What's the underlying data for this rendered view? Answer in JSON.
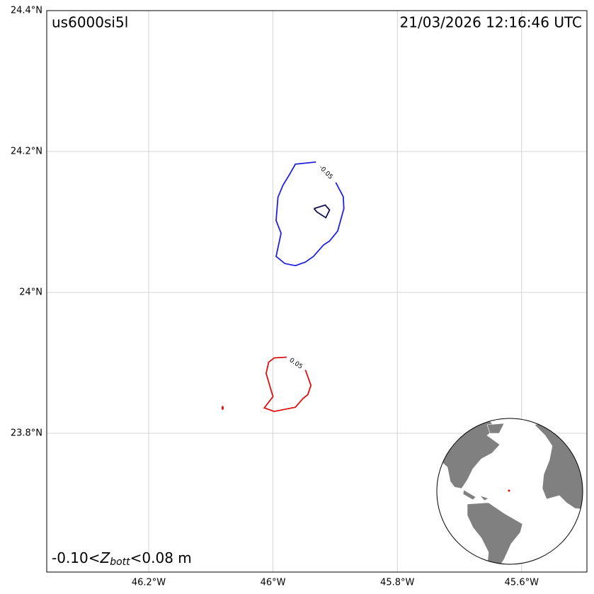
{
  "chart_data": {
    "type": "contour-map",
    "title": "us6000si5l",
    "timestamp": "21/03/2026 12:16:46 UTC",
    "range_label": {
      "prefix": "-0.10<",
      "symbol": "Z",
      "subscript": "bott",
      "suffix": "<0.08 m"
    },
    "xlim": [
      -46.364,
      -45.495
    ],
    "ylim": [
      23.603,
      24.4
    ],
    "xticks": [
      {
        "value": -46.2,
        "label": "46.2°W"
      },
      {
        "value": -46.0,
        "label": "46°W"
      },
      {
        "value": -45.8,
        "label": "45.8°W"
      },
      {
        "value": -45.6,
        "label": "45.6°W"
      }
    ],
    "yticks": [
      {
        "value": 23.8,
        "label": "23.8°N"
      },
      {
        "value": 24.0,
        "label": "24°N"
      },
      {
        "value": 24.2,
        "label": "24.2°N"
      },
      {
        "value": 24.4,
        "label": "24.4°N"
      }
    ],
    "grid": true,
    "contours": [
      {
        "level": -0.05,
        "color": "#2222dd",
        "lon": [
          -45.899,
          -45.887,
          -45.886,
          -45.896,
          -45.909,
          -45.919,
          -45.935,
          -45.948,
          -45.964,
          -45.981,
          -45.995,
          -45.987,
          -45.995,
          -45.992,
          -45.984,
          -45.973,
          -45.964,
          -45.931
        ],
        "lat": [
          24.156,
          24.136,
          24.119,
          24.087,
          24.073,
          24.067,
          24.051,
          24.043,
          24.038,
          24.041,
          24.051,
          24.084,
          24.102,
          24.135,
          24.152,
          24.168,
          24.182,
          24.185
        ]
      },
      {
        "color": "#101050",
        "lon": [
          -45.934,
          -45.916,
          -45.909,
          -45.915,
          -45.929,
          -45.934
        ],
        "lat": [
          24.119,
          24.124,
          24.117,
          24.106,
          24.114,
          24.119
        ]
      },
      {
        "level": 0.05,
        "color": "#dd1111",
        "lon": [
          -45.948,
          -45.939,
          -45.944,
          -45.952,
          -45.964,
          -45.998,
          -46.014,
          -46.0,
          -46.011,
          -46.007,
          -45.998,
          -45.978
        ],
        "lat": [
          23.89,
          23.868,
          23.855,
          23.849,
          23.837,
          23.831,
          23.836,
          23.852,
          23.885,
          23.901,
          23.907,
          23.908
        ]
      },
      {
        "color": "#dd1111",
        "lon": [
          -46.081
        ],
        "lat": [
          23.836
        ]
      }
    ]
  }
}
